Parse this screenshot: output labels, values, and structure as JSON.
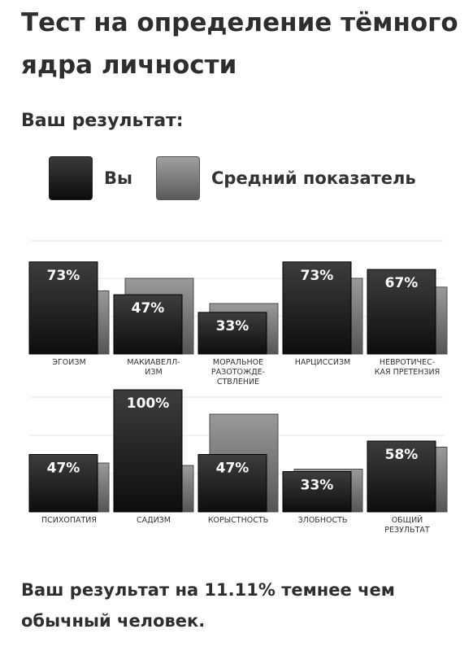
{
  "header": {
    "title": "Тест на определение тёмного ядра личности",
    "subtitle": "Ваш результат:"
  },
  "legend": {
    "you_label": "Вы",
    "avg_label": "Средний показатель"
  },
  "footer": {
    "text": "Ваш результат на 11.11% темнее чем обычный человек."
  },
  "colors": {
    "you": "#1a1a1a",
    "average": "#6e6e6e"
  },
  "chart_data": {
    "type": "bar",
    "ylim": [
      0,
      100
    ],
    "grid": true,
    "legend_position": "top",
    "series": [
      {
        "name": "Вы",
        "values": [
          73,
          47,
          33,
          73,
          67,
          47,
          100,
          47,
          33,
          58
        ]
      },
      {
        "name": "Средний показатель",
        "values": [
          50,
          60,
          40,
          60,
          53,
          40,
          38,
          80,
          35,
          53
        ]
      }
    ],
    "categories": [
      "ЭГОИЗМ",
      "МАКИАВЕЛЛ-\nИЗМ",
      "МОРАЛЬНОЕ\nРАЗОТОЖДЕ-\nСТВЛЕНИЕ",
      "НАРЦИССИЗМ",
      "НЕВРОТИЧЕС-\nКАЯ ПРЕТЕНЗИЯ",
      "ПСИХОПАТИЯ",
      "САДИЗМ",
      "КОРЫСТНОСТЬ",
      "ЗЛОБНОСТЬ",
      "ОБЩИЙ\nРЕЗУЛЬТАТ"
    ],
    "value_labels": [
      "73%",
      "47%",
      "33%",
      "73%",
      "67%",
      "47%",
      "100%",
      "47%",
      "33%",
      "58%"
    ]
  }
}
